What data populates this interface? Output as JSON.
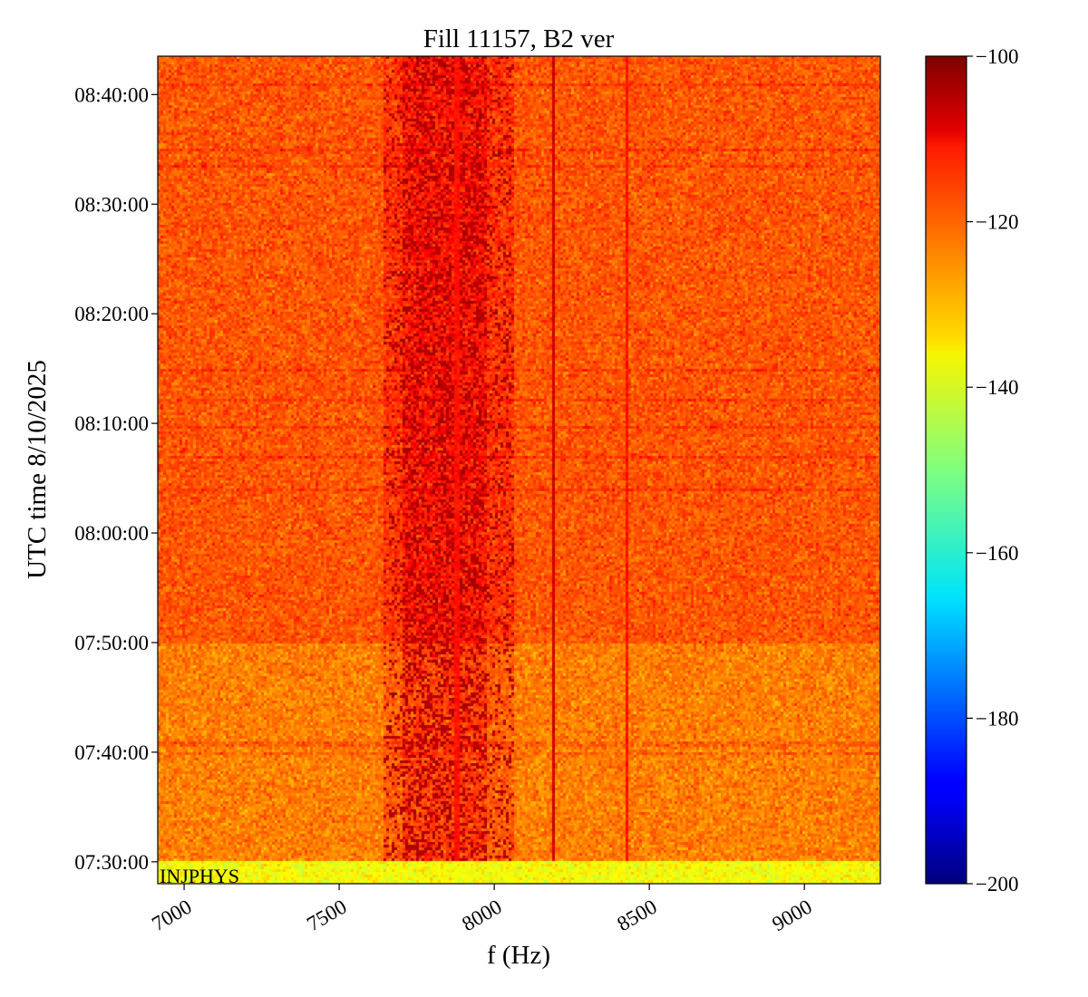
{
  "chart_data": {
    "type": "heatmap",
    "title": "Fill 11157, B2 ver",
    "xlabel": "f (Hz)",
    "ylabel": "UTC time 8/10/2025",
    "xlim": [
      6915,
      9245
    ],
    "ylim_minutes": [
      448.0,
      523.5
    ],
    "x_ticks": [
      {
        "value": 7000,
        "label": "7000"
      },
      {
        "value": 7500,
        "label": "7500"
      },
      {
        "value": 8000,
        "label": "8000"
      },
      {
        "value": 8500,
        "label": "8500"
      },
      {
        "value": 9000,
        "label": "9000"
      }
    ],
    "y_ticks": [
      {
        "value": 450,
        "label": "07:30:00"
      },
      {
        "value": 460,
        "label": "07:40:00"
      },
      {
        "value": 470,
        "label": "07:50:00"
      },
      {
        "value": 480,
        "label": "08:00:00"
      },
      {
        "value": 490,
        "label": "08:10:00"
      },
      {
        "value": 500,
        "label": "08:20:00"
      },
      {
        "value": 510,
        "label": "08:30:00"
      },
      {
        "value": 520,
        "label": "08:40:00"
      }
    ],
    "colorbar": {
      "colormap": "jet",
      "range": [
        -200,
        -100
      ],
      "ticks": [
        {
          "value": -100,
          "label": "−100"
        },
        {
          "value": -120,
          "label": "−120"
        },
        {
          "value": -140,
          "label": "−140"
        },
        {
          "value": -160,
          "label": "−160"
        },
        {
          "value": -180,
          "label": "−180"
        },
        {
          "value": -200,
          "label": "−200"
        }
      ]
    },
    "annotation": "INJPHYS",
    "features": {
      "background_level_db": -121,
      "early_background_level_db": -125,
      "injection_band_level_db": -138,
      "injection_band_minutes": [
        448.0,
        450.0
      ],
      "early_period_minutes": [
        450.0,
        470.0
      ],
      "signal_band_hz": [
        7640,
        8060
      ],
      "signal_level_db": -105,
      "spectral_lines_hz": [
        7880,
        8190,
        8430
      ]
    }
  }
}
